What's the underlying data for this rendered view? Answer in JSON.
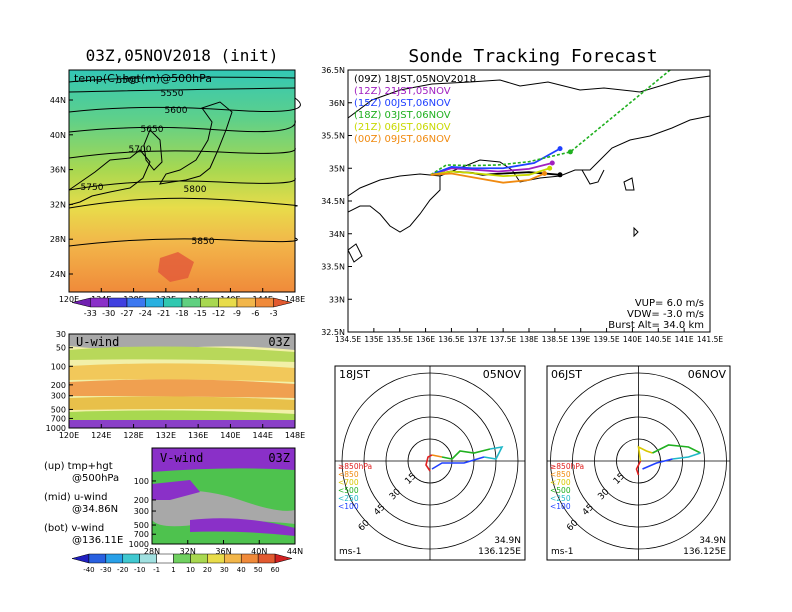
{
  "left_title": "03Z,05NOV2018 (init)",
  "right_title": "Sonde Tracking Forecast",
  "map500": {
    "label": "temp(C),hgt(m)@500hPa",
    "lat_ticks": [
      "44N",
      "40N",
      "36N",
      "32N",
      "28N",
      "24N"
    ],
    "lon_ticks": [
      "120E",
      "124E",
      "128E",
      "132E",
      "136E",
      "140E",
      "144E",
      "148E"
    ],
    "contour_labels": [
      "5500",
      "5550",
      "5600",
      "5650",
      "5700",
      "5750",
      "5800",
      "5850"
    ]
  },
  "temp_colorbar": [
    "-33",
    "-30",
    "-27",
    "-24",
    "-21",
    "-18",
    "-15",
    "-12",
    "-9",
    "-6",
    "-3"
  ],
  "uwind": {
    "label": "U-wind",
    "time": "03Z",
    "p_ticks": [
      "30",
      "50",
      "100",
      "200",
      "300",
      "500",
      "700",
      "1000"
    ],
    "lon_ticks": [
      "120E",
      "124E",
      "128E",
      "132E",
      "136E",
      "140E",
      "144E",
      "148E"
    ]
  },
  "vwind": {
    "label": "V-wind",
    "time": "03Z",
    "p_ticks": [
      "100",
      "200",
      "300",
      "500",
      "700",
      "1000"
    ],
    "lat_ticks": [
      "28N",
      "32N",
      "36N",
      "40N",
      "44N"
    ]
  },
  "legend_text": {
    "up1": "(up) tmp+hgt",
    "up2": "@500hPa",
    "mid1": "(mid) u-wind",
    "mid2": "@34.86N",
    "bot1": "(bot) v-wind",
    "bot2": "@136.11E"
  },
  "wind_colorbar": [
    "-40",
    "-30",
    "-20",
    "-10",
    "-1",
    "1",
    "10",
    "20",
    "30",
    "40",
    "50",
    "60"
  ],
  "track": {
    "lat_ticks": [
      "36.5N",
      "36N",
      "35.5N",
      "35N",
      "34.5N",
      "34N",
      "33.5N",
      "33N",
      "32.5N"
    ],
    "lon_ticks": [
      "134.5E",
      "135E",
      "135.5E",
      "136E",
      "136.5E",
      "137E",
      "137.5E",
      "138E",
      "138.5E",
      "139E",
      "139.5E",
      "140E",
      "140.5E",
      "141E",
      "141.5E"
    ],
    "legend": [
      {
        "text": "(09Z)  18JST,05NOV2018",
        "color": "#000000"
      },
      {
        "text": "(12Z)  21JST,05NOV",
        "color": "#a020c0"
      },
      {
        "text": "(15Z)  00JST,06NOV",
        "color": "#2040ff"
      },
      {
        "text": "(18Z)  03JST,06NOV",
        "color": "#20b020"
      },
      {
        "text": "(21Z)  06JST,06NOV",
        "color": "#c8d800"
      },
      {
        "text": "(00Z)  09JST,06NOV",
        "color": "#f08a10"
      }
    ],
    "info": [
      "VUP=  6.0  m/s",
      "VDW=  -3.0  m/s",
      "Burst Alt=  34.0  km"
    ]
  },
  "hodo1": {
    "time": "18JST",
    "date": "05NOV",
    "lat": "34.9N",
    "lon": "136.125E",
    "unit": "ms-1",
    "rings": [
      "15",
      "30",
      "45",
      "60"
    ],
    "levels": [
      {
        "text": "≥850hPa",
        "color": "#e02020"
      },
      {
        "text": "<850",
        "color": "#f08a10"
      },
      {
        "text": "<700",
        "color": "#d8c800"
      },
      {
        "text": "<500",
        "color": "#20b020"
      },
      {
        "text": "<250",
        "color": "#20b8c8"
      },
      {
        "text": "<100",
        "color": "#2040ff"
      }
    ]
  },
  "hodo2": {
    "time": "06JST",
    "date": "06NOV",
    "lat": "34.9N",
    "lon": "136.125E",
    "unit": "ms-1",
    "rings": [
      "15",
      "30",
      "45",
      "60"
    ],
    "levels": [
      {
        "text": "≥850hPa",
        "color": "#e02020"
      },
      {
        "text": "<850",
        "color": "#f08a10"
      },
      {
        "text": "<700",
        "color": "#d8c800"
      },
      {
        "text": "<500",
        "color": "#20b020"
      },
      {
        "text": "<250",
        "color": "#20b8c8"
      },
      {
        "text": "<100",
        "color": "#2040ff"
      }
    ]
  },
  "chart_data": [
    {
      "type": "heatmap",
      "title": "03Z,05NOV2018 (init)",
      "label": "temp(C),hgt(m)@500hPa",
      "xlim": [
        "120E",
        "148E"
      ],
      "ylim": [
        "24N",
        "46N"
      ],
      "contours": [
        5500,
        5550,
        5600,
        5650,
        5700,
        5750,
        5800,
        5850
      ],
      "colorbar": [
        -33,
        -30,
        -27,
        -24,
        -21,
        -18,
        -15,
        -12,
        -9,
        -6,
        -3
      ]
    },
    {
      "type": "heatmap",
      "label": "U-wind",
      "time": "03Z",
      "xlim": [
        "120E",
        "148E"
      ],
      "p_levels": [
        30,
        50,
        100,
        200,
        300,
        500,
        700,
        1000
      ]
    },
    {
      "type": "heatmap",
      "label": "V-wind",
      "time": "03Z",
      "xlim": [
        "28N",
        "44N"
      ],
      "p_levels": [
        100,
        200,
        300,
        500,
        700,
        1000
      ],
      "colorbar": [
        -40,
        -30,
        -20,
        -10,
        -1,
        1,
        10,
        20,
        30,
        40,
        50,
        60
      ]
    },
    {
      "type": "line",
      "title": "Sonde Tracking Forecast",
      "xlim": [
        134.5,
        141.5
      ],
      "ylim": [
        32.5,
        36.5
      ],
      "series": [
        {
          "name": "(09Z)  18JST,05NOV2018",
          "x": [
            136.1,
            136.5,
            136.9,
            137.1,
            137.5,
            138.0,
            138.6
          ],
          "y": [
            34.9,
            34.95,
            34.93,
            34.9,
            34.92,
            34.94,
            34.9
          ]
        },
        {
          "name": "(12Z)  21JST,05NOV",
          "x": [
            136.1,
            136.5,
            136.9,
            137.4,
            138.0,
            138.45
          ],
          "y": [
            34.9,
            35.0,
            34.98,
            34.95,
            34.99,
            35.08
          ]
        },
        {
          "name": "(15Z)  00JST,06NOV",
          "x": [
            136.1,
            136.5,
            136.9,
            137.5,
            138.1,
            138.6
          ],
          "y": [
            34.9,
            35.02,
            35.0,
            35.0,
            35.08,
            35.3
          ]
        },
        {
          "name": "(18Z)  03JST,06NOV",
          "x": [
            136.1,
            136.4,
            136.9,
            137.4,
            138.0,
            138.8,
            141.5
          ],
          "y": [
            34.9,
            35.05,
            35.04,
            35.05,
            35.1,
            35.25,
            37.0
          ]
        },
        {
          "name": "(21Z)  06JST,06NOV",
          "x": [
            136.1,
            136.5,
            137.0,
            137.5,
            138.0,
            138.4
          ],
          "y": [
            34.9,
            34.95,
            34.92,
            34.88,
            34.9,
            35.0
          ]
        },
        {
          "name": "(00Z)  09JST,06NOV",
          "x": [
            136.1,
            136.5,
            137.0,
            137.5,
            138.0,
            138.3
          ],
          "y": [
            34.9,
            34.92,
            34.85,
            34.78,
            34.82,
            34.92
          ]
        }
      ]
    },
    {
      "type": "line",
      "label": "hodograph 18JST 05NOV",
      "r_rings": [
        15,
        30,
        45,
        60
      ]
    },
    {
      "type": "line",
      "label": "hodograph 06JST 06NOV",
      "r_rings": [
        15,
        30,
        45,
        60
      ]
    }
  ]
}
